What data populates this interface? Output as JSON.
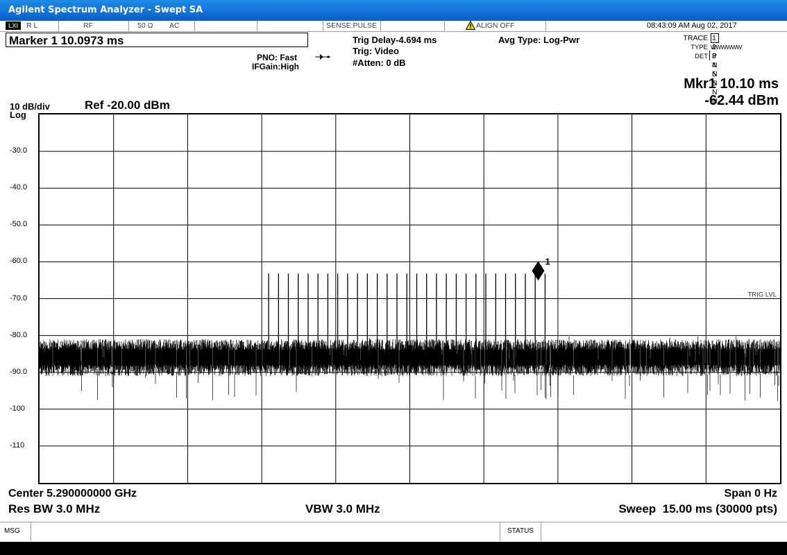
{
  "window": {
    "title": "Agilent Spectrum Analyzer - Swept SA"
  },
  "status_row": {
    "logo": "LXI",
    "rl": "R L",
    "rf": "RF",
    "impedance": "50 Ω",
    "coupling": "AC",
    "sense": "SENSE:PULSE",
    "align": "ALIGN OFF",
    "datetime": "08:43:09 AM Aug 02, 2017"
  },
  "marker": {
    "label": "Marker 1 10.0973 ms"
  },
  "settings": {
    "pno": "PNO: Fast",
    "ifgain": "IFGain:High",
    "trig_delay": "Trig Delay-4.694 ms",
    "trig": "Trig: Video",
    "atten": "#Atten: 0 dB",
    "avg_type": "Avg Type: Log-Pwr"
  },
  "trace_table": {
    "trace_label": "TRACE",
    "trace_values": "1 2 3 4 5 6",
    "type_label": "TYPE",
    "type_values": "WWWWWW",
    "det_label": "DET",
    "det_values": "P N N N N N"
  },
  "marker_readout": {
    "time": "Mkr1 10.10 ms",
    "level": "-62.44 dBm"
  },
  "scale": {
    "per_div": "10 dB/div",
    "log": "Log",
    "ref": "Ref -20.00 dBm"
  },
  "chart_data": {
    "type": "line",
    "xlabel": "",
    "ylabel": "",
    "ylim": [
      -120,
      -20
    ],
    "xlim": [
      0,
      15
    ],
    "x_unit": "ms",
    "y_unit": "dBm",
    "y_ticks": [
      "-30.0",
      "-40.0",
      "-50.0",
      "-60.0",
      "-70.0",
      "-80.0",
      "-90.0",
      "-100",
      "-110"
    ],
    "y_tick_values": [
      -30,
      -40,
      -50,
      -60,
      -70,
      -80,
      -90,
      -100,
      -110
    ],
    "x_divisions": 10,
    "grid": true,
    "noise_floor": {
      "mean": -85,
      "peak_max": -77,
      "dip_min": -98
    },
    "pulses_ms": [
      4.64,
      4.84,
      5.04,
      5.24,
      5.44,
      5.64,
      5.84,
      6.04,
      6.24,
      6.44,
      6.64,
      6.84,
      7.04,
      7.24,
      7.44,
      7.64,
      7.84,
      8.04,
      8.24,
      8.44,
      8.64,
      8.84,
      9.04,
      9.24,
      9.44,
      9.64,
      9.84,
      10.04,
      10.24
    ],
    "pulse_level_dbm": -63.2,
    "marker": {
      "name": "1",
      "x_ms": 10.1,
      "y_dbm": -62.44
    },
    "trig_level_label": "TRIG LVL",
    "trig_level_dbm": -70
  },
  "footer": {
    "center": "Center 5.290000000 GHz",
    "span": "Span 0 Hz",
    "res_bw": "Res BW 3.0 MHz",
    "vbw": "VBW 3.0 MHz",
    "sweep": "Sweep  15.00 ms (30000 pts)"
  },
  "bottom_bar": {
    "msg": "MSG",
    "status": "STATUS"
  }
}
